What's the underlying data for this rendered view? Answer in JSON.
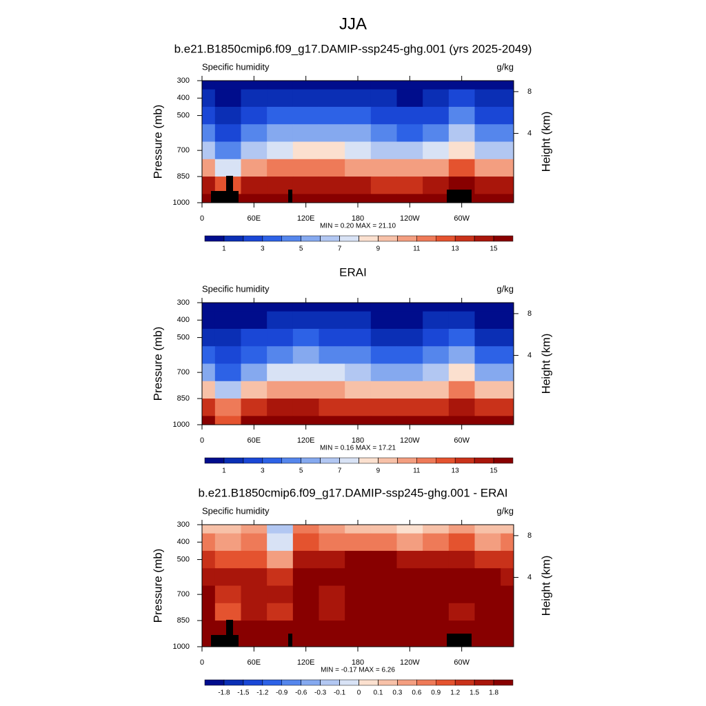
{
  "title": "JJA",
  "chart_data": [
    {
      "type": "contour",
      "title": "b.e21.B1850cmip6.f09_g17.DAMIP-ssp245-ghg.001 (yrs 2025-2049)",
      "left_string": "Specific humidity",
      "right_string": "g/kg",
      "ylabel": "Pressure (mb)",
      "y2label": "Height (km)",
      "stats": "MIN =   0.20  MAX =  21.10",
      "xlim": [
        0,
        360
      ],
      "xticks": [
        0,
        {
          "value": 60,
          "label": "60E"
        },
        {
          "value": 120,
          "label": "120E"
        },
        180,
        {
          "value": 240,
          "label": "120W"
        },
        {
          "value": 300,
          "label": "60W"
        }
      ],
      "ylim": [
        1000,
        300
      ],
      "yticks": [
        300,
        400,
        500,
        700,
        850,
        1000
      ],
      "y2lim": [
        0,
        9.5
      ],
      "y2ticks": [
        8,
        4
      ],
      "x": [
        0,
        30,
        60,
        90,
        120,
        150,
        180,
        210,
        240,
        270,
        300,
        330,
        360
      ],
      "p": [
        300,
        400,
        500,
        600,
        700,
        800,
        900,
        1000
      ],
      "z": [
        [
          0.4,
          0.3,
          0.4,
          0.6,
          0.7,
          0.7,
          0.5,
          0.3,
          0.2,
          0.4,
          0.7,
          0.4,
          0.4
        ],
        [
          1.0,
          0.6,
          1.2,
          1.5,
          1.8,
          1.7,
          1.4,
          1.0,
          0.8,
          1.3,
          2.0,
          1.0,
          1.0
        ],
        [
          2.2,
          1.3,
          2.5,
          3.2,
          3.6,
          3.5,
          3.0,
          2.4,
          2.0,
          2.8,
          4.2,
          2.3,
          2.2
        ],
        [
          4.0,
          2.5,
          4.3,
          5.2,
          5.8,
          5.6,
          5.0,
          4.2,
          3.8,
          4.8,
          6.3,
          4.0,
          4.0
        ],
        [
          6.3,
          4.0,
          6.5,
          7.6,
          8.3,
          8.1,
          7.4,
          6.6,
          6.2,
          7.3,
          8.8,
          6.4,
          6.3
        ],
        [
          10,
          7,
          10.5,
          11,
          11.5,
          11.3,
          10.8,
          10.2,
          10,
          10.8,
          12,
          10,
          10
        ],
        [
          14,
          12,
          14.5,
          14.2,
          14.5,
          14.4,
          14,
          13.8,
          13.7,
          14.2,
          15,
          14,
          14
        ],
        [
          16,
          16,
          16.5,
          16.5,
          16.5,
          16.5,
          16.3,
          16,
          16,
          16.3,
          16.6,
          16,
          16
        ]
      ],
      "levels": [
        1,
        2,
        3,
        4,
        5,
        6,
        7,
        8,
        9,
        10,
        11,
        12,
        13,
        14,
        15
      ],
      "colorbar_ticks": [
        1,
        3,
        5,
        7,
        9,
        11,
        13,
        15
      ],
      "colors": [
        "#000d8c",
        "#0b2fb5",
        "#1a47d6",
        "#2d62e6",
        "#5586ec",
        "#85a9ef",
        "#b2c7f2",
        "#d8e2f5",
        "#fbe0cf",
        "#f7c1a8",
        "#f39e80",
        "#ee7a58",
        "#e4532f",
        "#c9321a",
        "#a9160b",
        "#880000"
      ]
    },
    {
      "type": "contour",
      "title": "ERAI",
      "left_string": "Specific humidity",
      "right_string": "g/kg",
      "ylabel": "Pressure (mb)",
      "y2label": "Height (km)",
      "stats": "MIN =   0.16  MAX =  17.21",
      "xlim": [
        0,
        360
      ],
      "xticks": [
        0,
        {
          "value": 60,
          "label": "60E"
        },
        {
          "value": 120,
          "label": "120E"
        },
        180,
        {
          "value": 240,
          "label": "120W"
        },
        {
          "value": 300,
          "label": "60W"
        }
      ],
      "ylim": [
        1000,
        300
      ],
      "yticks": [
        300,
        400,
        500,
        700,
        850,
        1000
      ],
      "y2lim": [
        0,
        9.5
      ],
      "y2ticks": [
        8,
        4
      ],
      "x": [
        0,
        30,
        60,
        90,
        120,
        150,
        180,
        210,
        240,
        270,
        300,
        330,
        360
      ],
      "p": [
        300,
        400,
        500,
        600,
        700,
        800,
        900,
        1000
      ],
      "z": [
        [
          0.3,
          0.2,
          0.3,
          0.5,
          0.5,
          0.5,
          0.4,
          0.2,
          0.2,
          0.3,
          0.5,
          0.3,
          0.3
        ],
        [
          0.8,
          0.5,
          0.9,
          1.3,
          1.4,
          1.3,
          1.1,
          0.8,
          0.6,
          1.0,
          1.6,
          0.8,
          0.8
        ],
        [
          1.8,
          1.0,
          2.0,
          2.8,
          3.0,
          2.9,
          2.4,
          1.9,
          1.6,
          2.3,
          3.5,
          1.8,
          1.8
        ],
        [
          3.3,
          2.0,
          3.6,
          4.6,
          5.0,
          4.8,
          4.2,
          3.5,
          3.1,
          4.0,
          5.6,
          3.3,
          3.3
        ],
        [
          5.5,
          3.5,
          5.8,
          7.0,
          7.5,
          7.3,
          6.5,
          5.6,
          5.3,
          6.4,
          8.0,
          5.5,
          5.5
        ],
        [
          9,
          6,
          9.5,
          10.4,
          10.8,
          10.4,
          9.8,
          9.2,
          9,
          9.8,
          11.2,
          9,
          9
        ],
        [
          13.5,
          11,
          13.6,
          14,
          14,
          13.8,
          13.4,
          13.2,
          13,
          13.6,
          14.5,
          13.5,
          13.5
        ],
        [
          15.5,
          12,
          15.6,
          15.8,
          15.8,
          15.6,
          15.4,
          15.2,
          15.2,
          15.5,
          16,
          15.5,
          15.5
        ]
      ],
      "levels": [
        1,
        2,
        3,
        4,
        5,
        6,
        7,
        8,
        9,
        10,
        11,
        12,
        13,
        14,
        15
      ],
      "colorbar_ticks": [
        1,
        3,
        5,
        7,
        9,
        11,
        13,
        15
      ],
      "colors": [
        "#000d8c",
        "#0b2fb5",
        "#1a47d6",
        "#2d62e6",
        "#5586ec",
        "#85a9ef",
        "#b2c7f2",
        "#d8e2f5",
        "#fbe0cf",
        "#f7c1a8",
        "#f39e80",
        "#ee7a58",
        "#e4532f",
        "#c9321a",
        "#a9160b",
        "#880000"
      ]
    },
    {
      "type": "contour",
      "title": "b.e21.B1850cmip6.f09_g17.DAMIP-ssp245-ghg.001 - ERAI",
      "left_string": "Specific humidity",
      "right_string": "g/kg",
      "ylabel": "Pressure (mb)",
      "y2label": "Height (km)",
      "stats": "MIN =  -0.17  MAX =   6.26",
      "xlim": [
        0,
        360
      ],
      "xticks": [
        0,
        {
          "value": 60,
          "label": "60E"
        },
        {
          "value": 120,
          "label": "120E"
        },
        180,
        {
          "value": 240,
          "label": "120W"
        },
        {
          "value": 300,
          "label": "60W"
        }
      ],
      "ylim": [
        1000,
        300
      ],
      "yticks": [
        300,
        400,
        500,
        700,
        850,
        1000
      ],
      "y2lim": [
        0,
        9.5
      ],
      "y2ticks": [
        8,
        4
      ],
      "x": [
        0,
        30,
        60,
        90,
        120,
        150,
        180,
        210,
        240,
        270,
        300,
        330,
        360
      ],
      "p": [
        300,
        400,
        500,
        600,
        700,
        800,
        900,
        1000
      ],
      "z": [
        [
          0.2,
          0.1,
          0.3,
          -0.2,
          0.6,
          0.3,
          0.2,
          0.1,
          0,
          0.2,
          0.4,
          0.1,
          0.2
        ],
        [
          0.6,
          0.3,
          0.6,
          -0.1,
          1.0,
          0.8,
          0.7,
          0.6,
          0.4,
          0.7,
          0.9,
          0.4,
          0.6
        ],
        [
          1.2,
          0.9,
          1.0,
          0.5,
          1.6,
          1.5,
          1.9,
          1.9,
          1.5,
          1.6,
          1.7,
          1.2,
          1.2
        ],
        [
          1.7,
          1.6,
          1.5,
          1.2,
          2.0,
          1.8,
          2.0,
          2.0,
          1.9,
          1.9,
          1.9,
          1.8,
          1.7
        ],
        [
          1.9,
          1.4,
          1.7,
          1.5,
          2.1,
          1.7,
          2.0,
          2.1,
          2.0,
          2.0,
          1.8,
          1.9,
          1.9
        ],
        [
          2,
          1.0,
          1.6,
          1.4,
          2.0,
          1.6,
          1.8,
          2.0,
          2.0,
          2.0,
          1.5,
          2,
          2
        ],
        [
          2,
          1.9,
          2,
          2,
          2,
          1.9,
          2,
          2,
          2,
          2,
          2,
          2,
          2
        ],
        [
          2,
          2,
          2,
          2,
          2,
          2,
          2,
          2,
          2,
          2,
          2,
          2,
          2
        ]
      ],
      "levels": [
        -1.8,
        -1.5,
        -1.2,
        -0.9,
        -0.6,
        -0.3,
        -0.1,
        0,
        0.1,
        0.3,
        0.6,
        0.9,
        1.2,
        1.5,
        1.8
      ],
      "colorbar_ticks": [
        -1.8,
        -1.5,
        -1.2,
        -0.9,
        -0.6,
        -0.3,
        -0.1,
        0,
        0.1,
        0.3,
        0.6,
        0.9,
        1.2,
        1.5,
        1.8
      ],
      "colors": [
        "#000d8c",
        "#0b2fb5",
        "#1a47d6",
        "#2d62e6",
        "#5586ec",
        "#85a9ef",
        "#b2c7f2",
        "#d8e2f5",
        "#fbe0cf",
        "#f7c1a8",
        "#f39e80",
        "#ee7a58",
        "#e4532f",
        "#c9321a",
        "#a9160b",
        "#880000"
      ]
    }
  ]
}
